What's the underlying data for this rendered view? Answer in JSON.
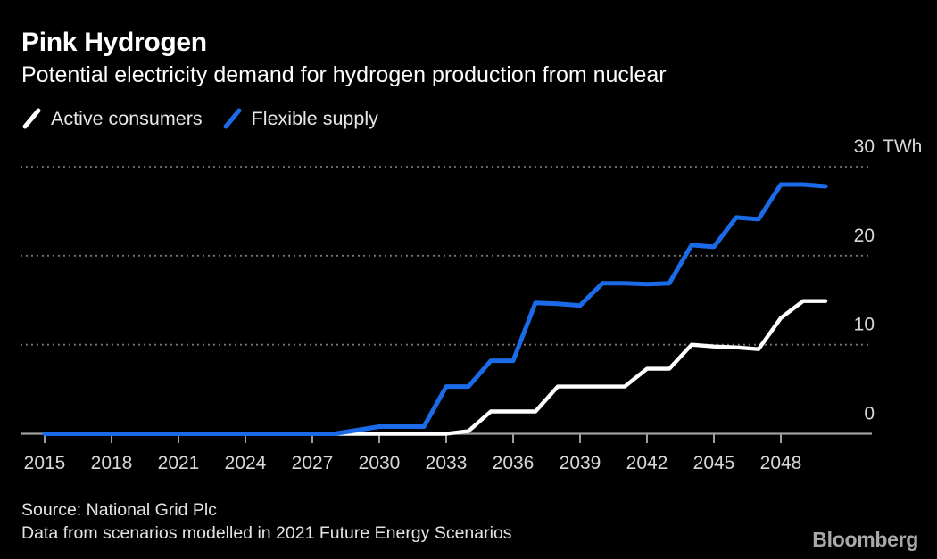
{
  "header": {
    "title": "Pink Hydrogen",
    "subtitle": "Potential electricity demand for hydrogen production from nuclear"
  },
  "legend": [
    {
      "label": "Active consumers",
      "color": "#ffffff"
    },
    {
      "label": "Flexible supply",
      "color": "#1b6be8"
    }
  ],
  "chart_data": {
    "type": "line",
    "title": "Pink Hydrogen",
    "subtitle": "Potential electricity demand for hydrogen production from nuclear",
    "unit": "TWh",
    "xlim": [
      2015,
      2050
    ],
    "ylim": [
      0,
      30
    ],
    "grid": "dotted horizontal gridlines at 10, 20, 30; solid baseline at 0",
    "legend_position": "top-left",
    "y_ticks": [
      0,
      10,
      20,
      30
    ],
    "y_gridlines": [
      10,
      20,
      30
    ],
    "x_tick_years": [
      2015,
      2018,
      2021,
      2024,
      2027,
      2030,
      2033,
      2036,
      2039,
      2042,
      2045,
      2048
    ],
    "x": [
      2015,
      2016,
      2017,
      2018,
      2019,
      2020,
      2021,
      2022,
      2023,
      2024,
      2025,
      2026,
      2027,
      2028,
      2029,
      2030,
      2031,
      2032,
      2033,
      2034,
      2035,
      2036,
      2037,
      2038,
      2039,
      2040,
      2041,
      2042,
      2043,
      2044,
      2045,
      2046,
      2047,
      2048,
      2049,
      2050
    ],
    "series": [
      {
        "name": "Active consumers",
        "color": "#ffffff",
        "values": [
          0,
          0,
          0,
          0,
          0,
          0,
          0,
          0,
          0,
          0,
          0,
          0,
          0,
          0,
          0,
          0,
          0,
          0,
          0,
          0.3,
          2.5,
          2.5,
          2.5,
          5.3,
          5.3,
          5.3,
          5.3,
          7.3,
          7.3,
          10,
          9.8,
          9.7,
          9.5,
          13,
          14.9,
          14.9
        ]
      },
      {
        "name": "Flexible supply",
        "color": "#1b6be8",
        "values": [
          0,
          0,
          0,
          0,
          0,
          0,
          0,
          0,
          0,
          0,
          0,
          0,
          0,
          0,
          0.4,
          0.8,
          0.8,
          0.8,
          5.3,
          5.3,
          8.2,
          8.2,
          14.7,
          14.6,
          14.4,
          16.9,
          16.9,
          16.8,
          16.9,
          21.2,
          21,
          24.3,
          24.1,
          28,
          28,
          27.8
        ]
      }
    ]
  },
  "footer": {
    "source_line1": "Source: National Grid Plc",
    "source_line2": "Data from scenarios modelled in 2021 Future Energy Scenarios",
    "brand": "Bloomberg"
  },
  "colors": {
    "background": "#000000",
    "title_text": "#ffffff",
    "axis_text": "#d8d8d8",
    "gridline": "#757575",
    "axis_line": "#9e9e9e"
  }
}
